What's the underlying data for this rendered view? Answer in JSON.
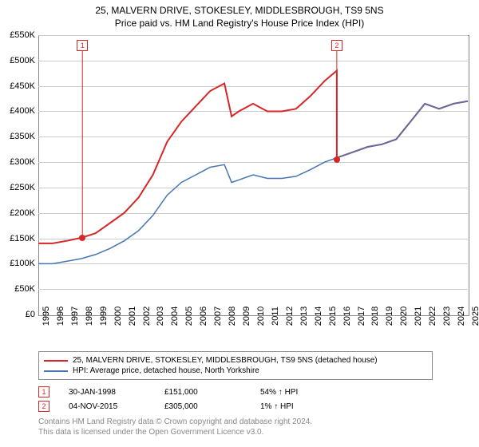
{
  "title_line1": "25, MALVERN DRIVE, STOKESLEY, MIDDLESBROUGH, TS9 5NS",
  "title_line2": "Price paid vs. HM Land Registry's House Price Index (HPI)",
  "chart": {
    "type": "line",
    "background_color": "#ffffff",
    "grid_color": "#cccccc",
    "border_color": "#888888",
    "ylim": [
      0,
      550000
    ],
    "ytick_step": 50000,
    "yticks": [
      "£0",
      "£50K",
      "£100K",
      "£150K",
      "£200K",
      "£250K",
      "£300K",
      "£350K",
      "£400K",
      "£450K",
      "£500K",
      "£550K"
    ],
    "xlim": [
      1995,
      2025
    ],
    "xticks": [
      "1995",
      "1996",
      "1997",
      "1998",
      "1999",
      "2000",
      "2001",
      "2002",
      "2003",
      "2004",
      "2005",
      "2006",
      "2007",
      "2008",
      "2009",
      "2010",
      "2011",
      "2012",
      "2013",
      "2014",
      "2015",
      "2016",
      "2017",
      "2018",
      "2019",
      "2020",
      "2021",
      "2022",
      "2023",
      "2024",
      "2025"
    ],
    "series": [
      {
        "name": "price_paid",
        "color": "#d62728",
        "width": 2,
        "points": [
          [
            1995,
            140000
          ],
          [
            1996,
            140000
          ],
          [
            1997,
            145000
          ],
          [
            1998,
            151000
          ],
          [
            1999,
            160000
          ],
          [
            2000,
            180000
          ],
          [
            2001,
            200000
          ],
          [
            2002,
            230000
          ],
          [
            2003,
            275000
          ],
          [
            2004,
            340000
          ],
          [
            2005,
            380000
          ],
          [
            2006,
            410000
          ],
          [
            2007,
            440000
          ],
          [
            2008,
            455000
          ],
          [
            2008.5,
            390000
          ],
          [
            2009,
            400000
          ],
          [
            2010,
            415000
          ],
          [
            2011,
            400000
          ],
          [
            2012,
            400000
          ],
          [
            2013,
            405000
          ],
          [
            2014,
            430000
          ],
          [
            2015,
            460000
          ],
          [
            2015.85,
            480000
          ],
          [
            2015.85,
            305000
          ],
          [
            2016,
            310000
          ],
          [
            2017,
            320000
          ],
          [
            2018,
            330000
          ],
          [
            2019,
            335000
          ],
          [
            2020,
            345000
          ],
          [
            2021,
            380000
          ],
          [
            2022,
            415000
          ],
          [
            2023,
            405000
          ],
          [
            2024,
            415000
          ],
          [
            2025,
            420000
          ]
        ]
      },
      {
        "name": "hpi",
        "color": "#4575b4",
        "width": 1.5,
        "points": [
          [
            1995,
            100000
          ],
          [
            1996,
            100000
          ],
          [
            1997,
            105000
          ],
          [
            1998,
            110000
          ],
          [
            1999,
            118000
          ],
          [
            2000,
            130000
          ],
          [
            2001,
            145000
          ],
          [
            2002,
            165000
          ],
          [
            2003,
            195000
          ],
          [
            2004,
            235000
          ],
          [
            2005,
            260000
          ],
          [
            2006,
            275000
          ],
          [
            2007,
            290000
          ],
          [
            2008,
            295000
          ],
          [
            2008.5,
            260000
          ],
          [
            2009,
            265000
          ],
          [
            2010,
            275000
          ],
          [
            2011,
            268000
          ],
          [
            2012,
            268000
          ],
          [
            2013,
            272000
          ],
          [
            2014,
            285000
          ],
          [
            2015,
            300000
          ],
          [
            2016,
            310000
          ],
          [
            2017,
            320000
          ],
          [
            2018,
            330000
          ],
          [
            2019,
            335000
          ],
          [
            2020,
            345000
          ],
          [
            2021,
            380000
          ],
          [
            2022,
            415000
          ],
          [
            2023,
            405000
          ],
          [
            2024,
            415000
          ],
          [
            2025,
            420000
          ]
        ]
      }
    ],
    "markers": [
      {
        "n": "1",
        "x": 1998.08,
        "y": 151000,
        "color": "#d62728"
      },
      {
        "n": "2",
        "x": 2015.85,
        "y": 305000,
        "color": "#d62728"
      }
    ]
  },
  "legend": {
    "items": [
      {
        "color": "#d62728",
        "label": "25, MALVERN DRIVE, STOKESLEY, MIDDLESBROUGH, TS9 5NS (detached house)"
      },
      {
        "color": "#4575b4",
        "label": "HPI: Average price, detached house, North Yorkshire"
      }
    ]
  },
  "transactions": [
    {
      "n": "1",
      "date": "30-JAN-1998",
      "price": "£151,000",
      "delta": "54% ↑ HPI",
      "color": "#d62728"
    },
    {
      "n": "2",
      "date": "04-NOV-2015",
      "price": "£305,000",
      "delta": "1% ↑ HPI",
      "color": "#d62728"
    }
  ],
  "footer_line1": "Contains HM Land Registry data © Crown copyright and database right 2024.",
  "footer_line2": "This data is licensed under the Open Government Licence v3.0."
}
